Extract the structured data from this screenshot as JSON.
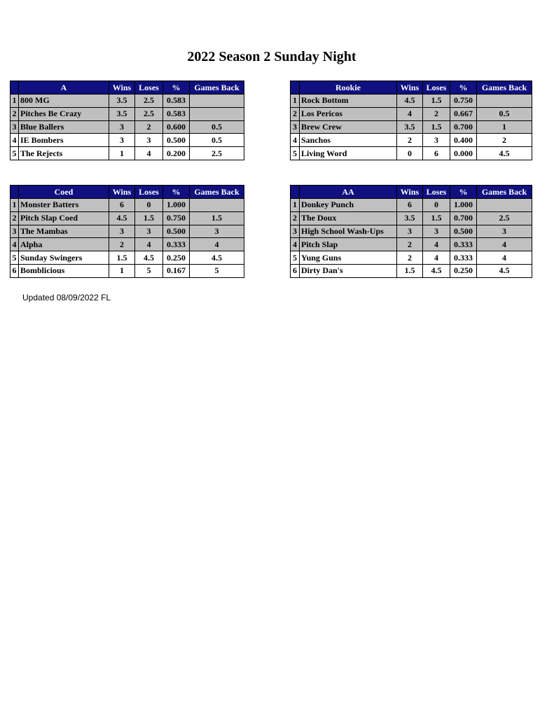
{
  "title": "2022 Season 2 Sunday Night",
  "tables": [
    {
      "header": [
        "A",
        "Wins",
        "Loses",
        "%",
        "Games Back"
      ],
      "rows": [
        [
          "1",
          "800 MG",
          "3.5",
          "2.5",
          "0.583",
          null
        ],
        [
          "2",
          "Pitches Be Crazy",
          "3.5",
          "2.5",
          "0.583",
          null
        ],
        [
          "3",
          "Blue Ballers",
          "3",
          "2",
          "0.600",
          "0.5"
        ],
        [
          "4",
          "IE Bombers",
          "3",
          "3",
          "0.500",
          "0.5"
        ],
        [
          "5",
          "The Rejects",
          "1",
          "4",
          "0.200",
          "2.5"
        ]
      ]
    },
    {
      "header": [
        "Rookie",
        "Wins",
        "Loses",
        "%",
        "Games Back"
      ],
      "rows": [
        [
          "1",
          "Rock Bottom",
          "4.5",
          "1.5",
          "0.750",
          null
        ],
        [
          "2",
          "Los Pericos",
          "4",
          "2",
          "0.667",
          "0.5"
        ],
        [
          "3",
          "Brew Crew",
          "3.5",
          "1.5",
          "0.700",
          "1"
        ],
        [
          "4",
          "Sanchos",
          "2",
          "3",
          "0.400",
          "2"
        ],
        [
          "5",
          "Living Word",
          "0",
          "6",
          "0.000",
          "4.5"
        ]
      ]
    },
    {
      "header": [
        "Coed",
        "Wins",
        "Loses",
        "%",
        "Games Back"
      ],
      "rows": [
        [
          "1",
          "Monster Batters",
          "6",
          "0",
          "1.000",
          null
        ],
        [
          "2",
          "Pitch Slap Coed",
          "4.5",
          "1.5",
          "0.750",
          "1.5"
        ],
        [
          "3",
          "The Mambas",
          "3",
          "3",
          "0.500",
          "3"
        ],
        [
          "4",
          "Alpha",
          "2",
          "4",
          "0.333",
          "4"
        ],
        [
          "5",
          "Sunday Swingers",
          "1.5",
          "4.5",
          "0.250",
          "4.5"
        ],
        [
          "6",
          "Bomblicious",
          "1",
          "5",
          "0.167",
          "5"
        ]
      ]
    },
    {
      "header": [
        "AA",
        "Wins",
        "Loses",
        "%",
        "Games Back"
      ],
      "rows": [
        [
          "1",
          "Donkey Punch",
          "6",
          "0",
          "1.000",
          null
        ],
        [
          "2",
          "The Doux",
          "3.5",
          "1.5",
          "0.700",
          "2.5"
        ],
        [
          "3",
          "High School Wash-Ups",
          "3",
          "3",
          "0.500",
          "3"
        ],
        [
          "4",
          "Pitch Slap",
          "2",
          "4",
          "0.333",
          "4"
        ],
        [
          "5",
          "Yung Guns",
          "2",
          "4",
          "0.333",
          "4"
        ],
        [
          "6",
          "Dirty Dan's",
          "1.5",
          "4.5",
          "0.250",
          "4.5"
        ]
      ]
    }
  ],
  "footer": "Updated 08/09/2022  FL"
}
